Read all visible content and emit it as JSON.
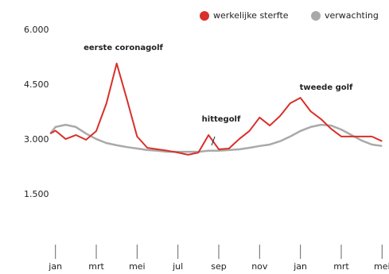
{
  "chart_data": {
    "type": "line",
    "x": [
      -0.25,
      0,
      0.5,
      1,
      1.5,
      2,
      2.5,
      3,
      3.5,
      4,
      4.5,
      5,
      5.5,
      6,
      6.5,
      7,
      7.5,
      8,
      8.5,
      9,
      9.5,
      10,
      10.5,
      11,
      11.5,
      12,
      12.5,
      13,
      13.5,
      14,
      14.5,
      15,
      15.5,
      16
    ],
    "series": [
      {
        "name": "werkelijke sterfte",
        "color": "#d8302a",
        "values": [
          3170,
          3250,
          3020,
          3130,
          3000,
          3240,
          4000,
          5090,
          4110,
          3090,
          2780,
          2740,
          2700,
          2650,
          2590,
          2650,
          3130,
          2740,
          2760,
          3020,
          3240,
          3610,
          3390,
          3650,
          4000,
          4150,
          3780,
          3570,
          3300,
          3090,
          3090,
          3090,
          3090,
          2960
        ]
      },
      {
        "name": "verwachting",
        "color": "#a9a9a9",
        "values": [
          3170,
          3350,
          3410,
          3350,
          3170,
          3020,
          2910,
          2850,
          2800,
          2760,
          2720,
          2700,
          2670,
          2670,
          2670,
          2670,
          2700,
          2700,
          2720,
          2740,
          2780,
          2830,
          2870,
          2960,
          3090,
          3240,
          3350,
          3410,
          3390,
          3280,
          3130,
          2980,
          2870,
          2830
        ]
      }
    ],
    "xlim": [
      -0.3,
      16.3
    ],
    "xticks": [
      {
        "value": 0,
        "label": "jan"
      },
      {
        "value": 2,
        "label": "mrt"
      },
      {
        "value": 4,
        "label": "mei"
      },
      {
        "value": 6,
        "label": "jul"
      },
      {
        "value": 8,
        "label": "sep"
      },
      {
        "value": 10,
        "label": "nov"
      },
      {
        "value": 12,
        "label": "jan"
      },
      {
        "value": 14,
        "label": "mrt"
      },
      {
        "value": 16,
        "label": "mei"
      }
    ],
    "ylim": [
      0,
      6000
    ],
    "yticks": [
      {
        "value": 1500,
        "label": "1.500"
      },
      {
        "value": 3000,
        "label": "3.000"
      },
      {
        "value": 4500,
        "label": "4.500"
      },
      {
        "value": 6000,
        "label": "6.000"
      }
    ],
    "annotations": [
      "eerste coronagolf",
      "hittegolf",
      "tweede golf"
    ],
    "legend": "top-right"
  }
}
